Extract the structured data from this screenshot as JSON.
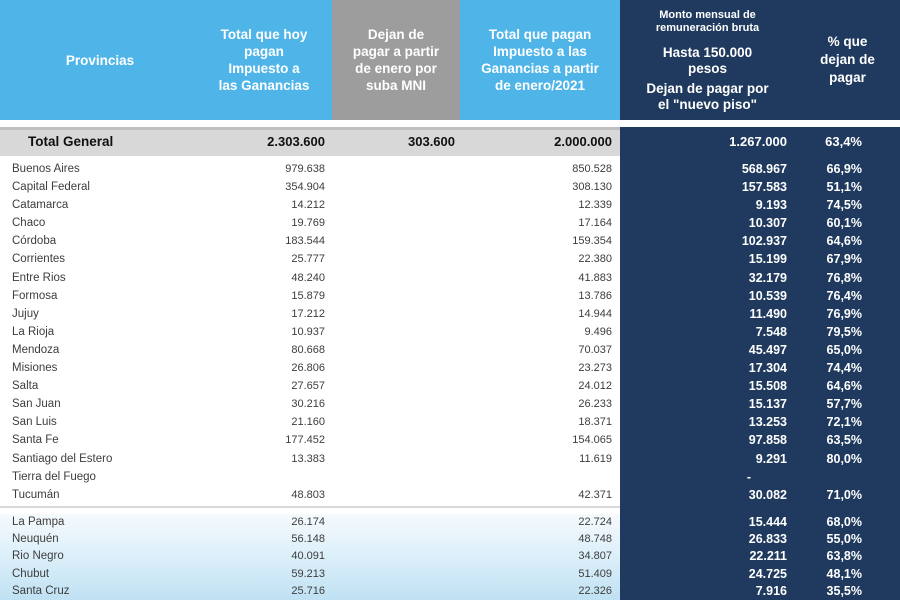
{
  "colors": {
    "light_blue_header": "#4FB5E8",
    "gray_header": "#9D9D9D",
    "navy_panel": "#1F3A5E",
    "total_row_bg": "#D8D8D8",
    "south_gradient_top": "#F6FAFD",
    "south_gradient_bottom": "#BFE1F3",
    "header_text": "#FFFFFF",
    "body_text": "#3D3D3D"
  },
  "header": {
    "provincias": "Provincias",
    "total_hoy": "Total que hoy\npagan\nImpuesto a\nlas Ganancias",
    "dejan_mni": "Dejan de\npagar a partir\nde enero por\nsuba MNI",
    "total_2021": "Total que pagan\nImpuesto a las\nGanancias a partir\nde enero/2021",
    "monto_sub": "Monto mensual de\nremuneración bruta",
    "monto_hasta": "Hasta 150.000\npesos",
    "monto_dejan": "Dejan de pagar por\nel \"nuevo piso\"",
    "pct": "% que\ndejan de\npagar"
  },
  "chart_data": {
    "type": "table",
    "columns": [
      "Provincias",
      "Total que hoy pagan Impuesto a las Ganancias",
      "Dejan de pagar a partir de enero por suba MNI",
      "Total que pagan Impuesto a las Ganancias a partir de enero/2021",
      "Monto mensual de remuneración bruta - Hasta 150.000 pesos - Dejan de pagar por el \"nuevo piso\"",
      "% que dejan de pagar"
    ],
    "total_row": {
      "label": "Total General",
      "hoy": "2.303.600",
      "mni": "303.600",
      "a2021": "2.000.000",
      "monto": "1.267.000",
      "pct": "63,4%"
    },
    "rows": [
      {
        "name": "Buenos Aires",
        "hoy": "979.638",
        "mni": "",
        "a2021": "850.528",
        "monto": "568.967",
        "pct": "66,9%",
        "group": "main"
      },
      {
        "name": "Capital Federal",
        "hoy": "354.904",
        "mni": "",
        "a2021": "308.130",
        "monto": "157.583",
        "pct": "51,1%",
        "group": "main"
      },
      {
        "name": "Catamarca",
        "hoy": "14.212",
        "mni": "",
        "a2021": "12.339",
        "monto": "9.193",
        "pct": "74,5%",
        "group": "main"
      },
      {
        "name": "Chaco",
        "hoy": "19.769",
        "mni": "",
        "a2021": "17.164",
        "monto": "10.307",
        "pct": "60,1%",
        "group": "main"
      },
      {
        "name": "Córdoba",
        "hoy": "183.544",
        "mni": "",
        "a2021": "159.354",
        "monto": "102.937",
        "pct": "64,6%",
        "group": "main"
      },
      {
        "name": "Corrientes",
        "hoy": "25.777",
        "mni": "",
        "a2021": "22.380",
        "monto": "15.199",
        "pct": "67,9%",
        "group": "main"
      },
      {
        "name": "Entre Rios",
        "hoy": "48.240",
        "mni": "",
        "a2021": "41.883",
        "monto": "32.179",
        "pct": "76,8%",
        "group": "main"
      },
      {
        "name": "Formosa",
        "hoy": "15.879",
        "mni": "",
        "a2021": "13.786",
        "monto": "10.539",
        "pct": "76,4%",
        "group": "main"
      },
      {
        "name": "Jujuy",
        "hoy": "17.212",
        "mni": "",
        "a2021": "14.944",
        "monto": "11.490",
        "pct": "76,9%",
        "group": "main"
      },
      {
        "name": "La Rioja",
        "hoy": "10.937",
        "mni": "",
        "a2021": "9.496",
        "monto": "7.548",
        "pct": "79,5%",
        "group": "main"
      },
      {
        "name": "Mendoza",
        "hoy": "80.668",
        "mni": "",
        "a2021": "70.037",
        "monto": "45.497",
        "pct": "65,0%",
        "group": "main"
      },
      {
        "name": "Misiones",
        "hoy": "26.806",
        "mni": "",
        "a2021": "23.273",
        "monto": "17.304",
        "pct": "74,4%",
        "group": "main"
      },
      {
        "name": "Salta",
        "hoy": "27.657",
        "mni": "",
        "a2021": "24.012",
        "monto": "15.508",
        "pct": "64,6%",
        "group": "main"
      },
      {
        "name": "San Juan",
        "hoy": "30.216",
        "mni": "",
        "a2021": "26.233",
        "monto": "15.137",
        "pct": "57,7%",
        "group": "main"
      },
      {
        "name": "San Luis",
        "hoy": "21.160",
        "mni": "",
        "a2021": "18.371",
        "monto": "13.253",
        "pct": "72,1%",
        "group": "main"
      },
      {
        "name": "Santa Fe",
        "hoy": "177.452",
        "mni": "",
        "a2021": "154.065",
        "monto": "97.858",
        "pct": "63,5%",
        "group": "main"
      },
      {
        "name": "Santiago del Estero",
        "hoy": "13.383",
        "mni": "",
        "a2021": "11.619",
        "monto": "9.291",
        "pct": "80,0%",
        "group": "main"
      },
      {
        "name": "Tierra del Fuego",
        "hoy": "",
        "mni": "",
        "a2021": "",
        "monto": "-",
        "pct": "",
        "group": "main"
      },
      {
        "name": "Tucumán",
        "hoy": "48.803",
        "mni": "",
        "a2021": "42.371",
        "monto": "30.082",
        "pct": "71,0%",
        "group": "main"
      },
      {
        "name": "La Pampa",
        "hoy": "26.174",
        "mni": "",
        "a2021": "22.724",
        "monto": "15.444",
        "pct": "68,0%",
        "group": "south"
      },
      {
        "name": "Neuquén",
        "hoy": "56.148",
        "mni": "",
        "a2021": "48.748",
        "monto": "26.833",
        "pct": "55,0%",
        "group": "south"
      },
      {
        "name": "Rio Negro",
        "hoy": "40.091",
        "mni": "",
        "a2021": "34.807",
        "monto": "22.211",
        "pct": "63,8%",
        "group": "south"
      },
      {
        "name": "Chubut",
        "hoy": "59.213",
        "mni": "",
        "a2021": "51.409",
        "monto": "24.725",
        "pct": "48,1%",
        "group": "south"
      },
      {
        "name": "Santa Cruz",
        "hoy": "25.716",
        "mni": "",
        "a2021": "22.326",
        "monto": "7.916",
        "pct": "35,5%",
        "group": "south"
      }
    ]
  }
}
